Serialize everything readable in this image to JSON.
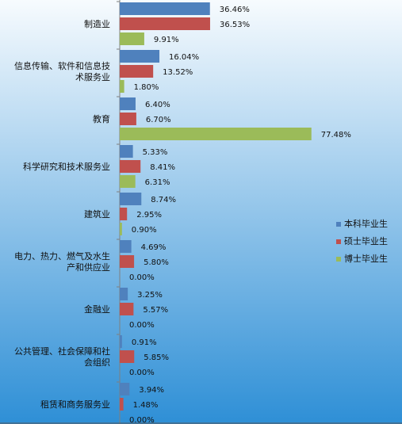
{
  "chart_data": {
    "type": "bar",
    "orientation": "horizontal",
    "categories": [
      [
        "制造业"
      ],
      [
        "信息传输、软件和信息技",
        "术服务业"
      ],
      [
        "教育"
      ],
      [
        "科学研究和技术服务业"
      ],
      [
        "建筑业"
      ],
      [
        "电力、热力、燃气及水生",
        "产和供应业"
      ],
      [
        "金融业"
      ],
      [
        "公共管理、社会保障和社",
        "会组织"
      ],
      [
        "租赁和商务服务业"
      ]
    ],
    "series": [
      {
        "name": "本科毕业生",
        "color": "#4f81bd",
        "values": [
          36.46,
          16.04,
          6.4,
          5.33,
          8.74,
          4.69,
          3.25,
          0.91,
          3.94
        ],
        "labels": [
          "36.46%",
          "16.04%",
          "6.40%",
          "5.33%",
          "8.74%",
          "4.69%",
          "3.25%",
          "0.91%",
          "3.94%"
        ]
      },
      {
        "name": "硕士毕业生",
        "color": "#c0504d",
        "values": [
          36.53,
          13.52,
          6.7,
          8.41,
          2.95,
          5.8,
          5.57,
          5.85,
          1.48
        ],
        "labels": [
          "36.53%",
          "13.52%",
          "6.70%",
          "8.41%",
          "2.95%",
          "5.80%",
          "5.57%",
          "5.85%",
          "1.48%"
        ]
      },
      {
        "name": "博士毕业生",
        "color": "#9bbb59",
        "values": [
          9.91,
          1.8,
          77.48,
          6.31,
          0.9,
          0.0,
          0.0,
          0.0,
          0.0
        ],
        "labels": [
          "9.91%",
          "1.80%",
          "77.48%",
          "6.31%",
          "0.90%",
          "0.00%",
          "0.00%",
          "0.00%",
          "0.00%"
        ]
      }
    ],
    "legend_position": "right",
    "grid": false,
    "background_colors": [
      "#f7fbfe",
      "#2e8fd6"
    ]
  }
}
